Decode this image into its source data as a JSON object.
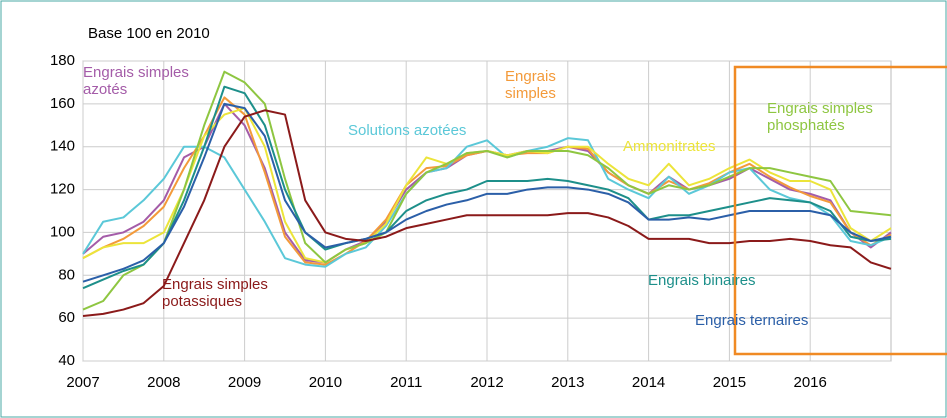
{
  "chart_data": {
    "type": "line",
    "subtitle": "Base 100 en 2010",
    "x": [
      2007,
      2007.25,
      2007.5,
      2007.75,
      2008,
      2008.25,
      2008.5,
      2008.75,
      2009,
      2009.25,
      2009.5,
      2009.75,
      2010,
      2010.25,
      2010.5,
      2010.75,
      2011,
      2011.25,
      2011.5,
      2011.75,
      2012,
      2012.25,
      2012.5,
      2012.75,
      2013,
      2013.25,
      2013.5,
      2013.75,
      2014,
      2014.25,
      2014.5,
      2014.75,
      2015,
      2015.25,
      2015.5,
      2015.75,
      2016,
      2016.25,
      2016.5,
      2016.75,
      2017
    ],
    "xlim": [
      2007,
      2017
    ],
    "xticks": [
      2007,
      2008,
      2009,
      2010,
      2011,
      2012,
      2013,
      2014,
      2015,
      2016
    ],
    "ylim": [
      40,
      180
    ],
    "yticks": [
      40,
      60,
      80,
      100,
      120,
      140,
      160,
      180
    ],
    "grid": true,
    "series": [
      {
        "name": "Engrais simples azotés",
        "color": "#a45ca8",
        "values": [
          90,
          98,
          100,
          105,
          115,
          135,
          140,
          160,
          150,
          130,
          100,
          87,
          86,
          92,
          96,
          105,
          120,
          128,
          130,
          136,
          138,
          136,
          138,
          138,
          140,
          138,
          128,
          122,
          118,
          126,
          120,
          122,
          125,
          130,
          125,
          120,
          118,
          115,
          100,
          93,
          100
        ]
      },
      {
        "name": "Engrais simples",
        "color": "#f39a3a",
        "values": [
          88,
          93,
          97,
          103,
          112,
          130,
          145,
          163,
          155,
          128,
          98,
          86,
          85,
          90,
          96,
          106,
          122,
          130,
          131,
          136,
          138,
          136,
          137,
          137,
          140,
          139,
          128,
          122,
          118,
          124,
          120,
          123,
          128,
          132,
          126,
          121,
          117,
          114,
          100,
          94,
          99
        ]
      },
      {
        "name": "Solutions azotées",
        "color": "#5bc8d8",
        "values": [
          90,
          105,
          107,
          115,
          125,
          140,
          140,
          135,
          120,
          105,
          88,
          85,
          84,
          90,
          93,
          103,
          118,
          128,
          130,
          140,
          143,
          135,
          138,
          140,
          144,
          143,
          125,
          120,
          116,
          126,
          118,
          122,
          128,
          130,
          120,
          116,
          114,
          108,
          96,
          94,
          98
        ]
      },
      {
        "name": "Ammonitrates",
        "color": "#ece43a",
        "values": [
          88,
          93,
          95,
          95,
          100,
          120,
          145,
          155,
          158,
          140,
          105,
          88,
          86,
          92,
          95,
          104,
          122,
          135,
          132,
          137,
          138,
          136,
          138,
          137,
          140,
          140,
          132,
          125,
          122,
          132,
          122,
          125,
          130,
          134,
          128,
          124,
          124,
          120,
          102,
          96,
          102
        ]
      },
      {
        "name": "Engrais simples phosphatés",
        "color": "#8ec641",
        "values": [
          64,
          68,
          80,
          85,
          95,
          120,
          150,
          175,
          170,
          160,
          125,
          95,
          86,
          92,
          95,
          100,
          118,
          128,
          132,
          137,
          138,
          135,
          138,
          138,
          138,
          136,
          130,
          122,
          118,
          122,
          120,
          122,
          126,
          130,
          130,
          128,
          126,
          124,
          110,
          109,
          108
        ]
      },
      {
        "name": "Engrais binaires",
        "color": "#1d8f8a",
        "values": [
          74,
          78,
          82,
          85,
          95,
          115,
          140,
          168,
          165,
          150,
          120,
          100,
          92,
          95,
          97,
          100,
          110,
          115,
          118,
          120,
          124,
          124,
          124,
          125,
          124,
          122,
          120,
          116,
          106,
          108,
          108,
          110,
          112,
          114,
          116,
          115,
          114,
          110,
          98,
          96,
          97
        ]
      },
      {
        "name": "Engrais ternaires",
        "color": "#2b5fa8",
        "values": [
          77,
          80,
          83,
          87,
          95,
          112,
          135,
          160,
          158,
          145,
          115,
          100,
          93,
          95,
          97,
          100,
          106,
          110,
          113,
          115,
          118,
          118,
          120,
          121,
          121,
          120,
          118,
          114,
          106,
          106,
          107,
          106,
          108,
          110,
          110,
          110,
          110,
          108,
          100,
          96,
          98
        ]
      },
      {
        "name": "Engrais simples potassiques",
        "color": "#8b1a1a",
        "values": [
          61,
          62,
          64,
          67,
          75,
          95,
          115,
          140,
          154,
          157,
          155,
          115,
          100,
          97,
          96,
          98,
          102,
          104,
          106,
          108,
          108,
          108,
          108,
          108,
          109,
          109,
          107,
          103,
          97,
          97,
          97,
          95,
          95,
          96,
          96,
          97,
          96,
          94,
          93,
          86,
          83
        ]
      }
    ]
  }
}
